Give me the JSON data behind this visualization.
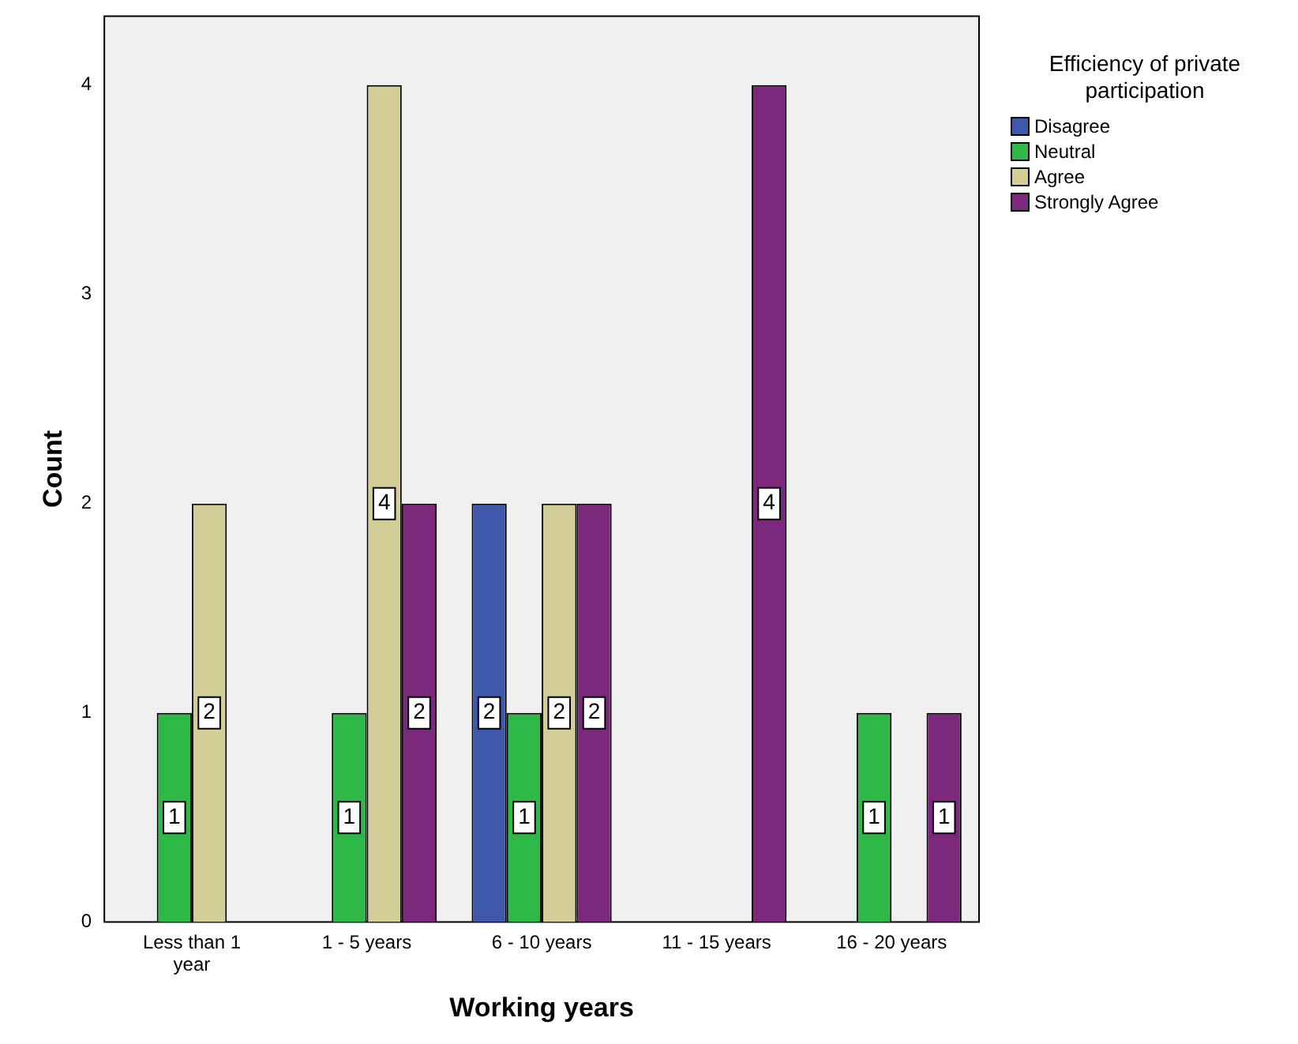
{
  "chart_data": {
    "type": "bar",
    "xlabel": "Working years",
    "ylabel": "Count",
    "legend_title": "Efficiency of private participation",
    "legend": "top right",
    "categories": [
      "Less than 1 year",
      "1 - 5 years",
      "6 - 10 years",
      "11 - 15 years",
      "16 - 20 years"
    ],
    "series": [
      {
        "name": "Disagree",
        "color": "#3e58ac",
        "values": [
          null,
          null,
          2,
          null,
          null
        ]
      },
      {
        "name": "Neutral",
        "color": "#2eb848",
        "values": [
          1,
          1,
          1,
          null,
          1
        ]
      },
      {
        "name": "Agree",
        "color": "#d3ce97",
        "values": [
          2,
          4,
          2,
          null,
          null
        ]
      },
      {
        "name": "Strongly Agree",
        "color": "#7c287d",
        "values": [
          null,
          2,
          2,
          4,
          1
        ]
      }
    ],
    "ylim": [
      0,
      4.33
    ],
    "yticks": [
      0,
      1,
      2,
      3,
      4
    ],
    "grid": false,
    "data_labels": true
  }
}
